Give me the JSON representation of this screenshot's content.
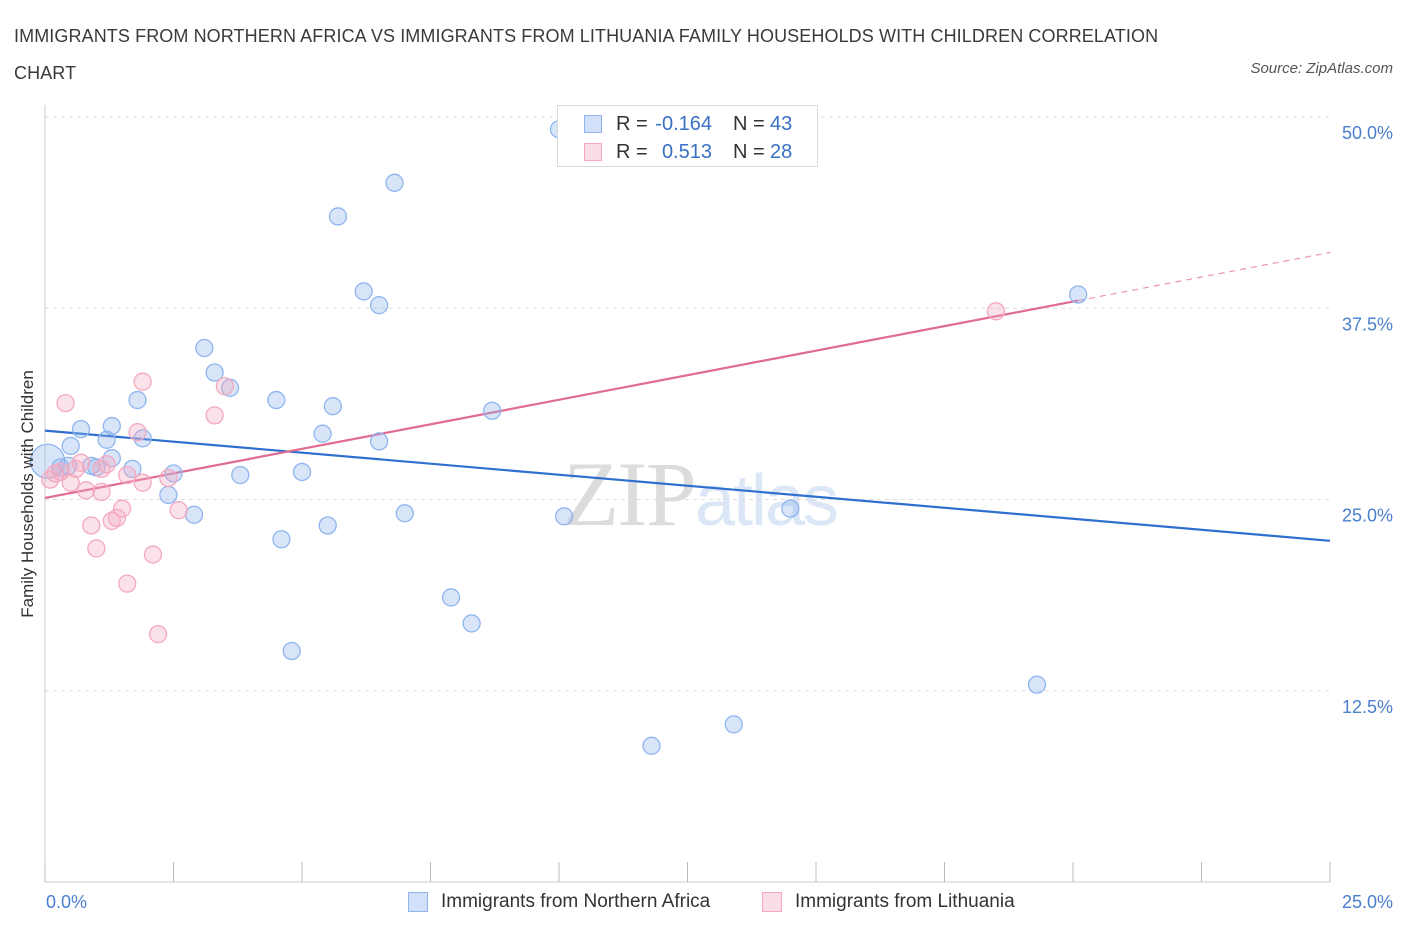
{
  "chart_data": {
    "type": "scatter",
    "title": "IMMIGRANTS FROM NORTHERN AFRICA VS IMMIGRANTS FROM LITHUANIA FAMILY HOUSEHOLDS WITH CHILDREN CORRELATION CHART",
    "source": "Source: ZipAtlas.com",
    "watermark": "ZIPatlas",
    "xlabel": "",
    "ylabel": "Family Households with Children",
    "xlim": [
      0,
      25
    ],
    "ylim": [
      0,
      50
    ],
    "x_tick_labels": [
      "0.0%",
      "25.0%"
    ],
    "y_ticks": [
      12.5,
      25.0,
      37.5,
      50.0
    ],
    "y_tick_labels": [
      "12.5%",
      "25.0%",
      "37.5%",
      "50.0%"
    ],
    "grid": true,
    "legend_position": "top-center",
    "series": [
      {
        "name": "Immigrants from Northern Africa",
        "color": "#8fb5ef",
        "line_color": "#2f6fd0",
        "R": "-0.164",
        "N": "43",
        "trend": {
          "x0": 0,
          "y0": 29.5,
          "x1": 25,
          "y1": 22.3,
          "dashed_to": 25
        },
        "points": [
          [
            0.05,
            27.5
          ],
          [
            0.3,
            27.1
          ],
          [
            0.5,
            28.5
          ],
          [
            0.9,
            27.2
          ],
          [
            1.2,
            28.9
          ],
          [
            1.7,
            27.0
          ],
          [
            1.9,
            29.0
          ],
          [
            0.7,
            29.6
          ],
          [
            1.3,
            29.8
          ],
          [
            1.8,
            31.5
          ],
          [
            2.5,
            26.7
          ],
          [
            3.1,
            34.9
          ],
          [
            3.3,
            33.3
          ],
          [
            3.6,
            32.3
          ],
          [
            2.4,
            25.3
          ],
          [
            2.9,
            24.0
          ],
          [
            3.8,
            26.6
          ],
          [
            4.6,
            22.4
          ],
          [
            4.5,
            31.5
          ],
          [
            5.0,
            26.8
          ],
          [
            4.8,
            15.1
          ],
          [
            5.4,
            29.3
          ],
          [
            5.5,
            23.3
          ],
          [
            5.6,
            31.1
          ],
          [
            5.7,
            43.5
          ],
          [
            6.2,
            38.6
          ],
          [
            6.5,
            28.8
          ],
          [
            6.5,
            37.7
          ],
          [
            6.8,
            45.7
          ],
          [
            7.0,
            24.1
          ],
          [
            7.9,
            18.6
          ],
          [
            8.3,
            16.9
          ],
          [
            8.7,
            30.8
          ],
          [
            10.1,
            23.9
          ],
          [
            10.0,
            49.2
          ],
          [
            11.8,
            8.9
          ],
          [
            13.4,
            10.3
          ],
          [
            14.5,
            24.4
          ],
          [
            19.3,
            12.9
          ],
          [
            20.1,
            38.4
          ],
          [
            1.3,
            27.7
          ],
          [
            1.0,
            27.1
          ],
          [
            0.45,
            27.2
          ]
        ]
      },
      {
        "name": "Immigrants from Lithuania",
        "color": "#f4a9c0",
        "line_color": "#e06b93",
        "R": "0.513",
        "N": "28",
        "trend": {
          "x0": 0,
          "y0": 25.1,
          "x1": 20.1,
          "y1": 38.0,
          "dashed_to": 25
        },
        "points": [
          [
            0.1,
            26.3
          ],
          [
            0.3,
            26.8
          ],
          [
            0.4,
            31.3
          ],
          [
            0.6,
            27.0
          ],
          [
            0.7,
            27.4
          ],
          [
            0.8,
            25.6
          ],
          [
            0.9,
            23.3
          ],
          [
            1.0,
            21.8
          ],
          [
            1.1,
            25.5
          ],
          [
            1.2,
            27.3
          ],
          [
            1.3,
            23.6
          ],
          [
            1.4,
            23.8
          ],
          [
            1.5,
            24.4
          ],
          [
            1.6,
            26.6
          ],
          [
            1.6,
            19.5
          ],
          [
            1.8,
            29.4
          ],
          [
            1.9,
            32.7
          ],
          [
            1.9,
            26.1
          ],
          [
            2.1,
            21.4
          ],
          [
            2.2,
            16.2
          ],
          [
            2.4,
            26.4
          ],
          [
            2.6,
            24.3
          ],
          [
            3.3,
            30.5
          ],
          [
            3.5,
            32.4
          ],
          [
            18.5,
            37.3
          ],
          [
            0.2,
            26.7
          ],
          [
            0.5,
            26.1
          ],
          [
            1.1,
            27.0
          ]
        ]
      }
    ]
  }
}
